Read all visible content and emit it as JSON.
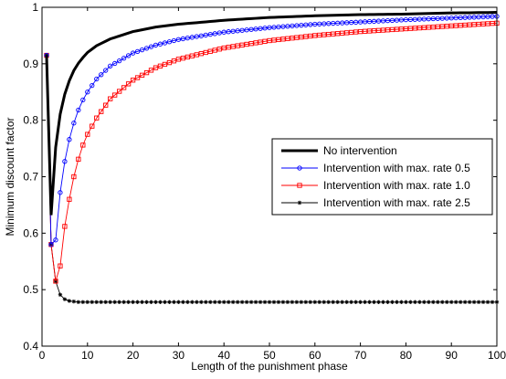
{
  "chart_data": {
    "type": "line",
    "title": "",
    "xlabel": "Length of the punishment phase",
    "ylabel": "Minimum discount factor",
    "xlim": [
      0,
      100
    ],
    "ylim": [
      0.4,
      1.0
    ],
    "xticks": [
      0,
      10,
      20,
      30,
      40,
      50,
      60,
      70,
      80,
      90,
      100
    ],
    "yticks": [
      0.4,
      0.5,
      0.6,
      0.7,
      0.8,
      0.9,
      1.0
    ],
    "xtick_labels": [
      "0",
      "10",
      "20",
      "30",
      "40",
      "50",
      "60",
      "70",
      "80",
      "90",
      "100"
    ],
    "ytick_labels": [
      "0.4",
      "0.5",
      "0.6",
      "0.7",
      "0.8",
      "0.9",
      "1"
    ],
    "grid": false,
    "legend_position": "right",
    "series": [
      {
        "name": "No intervention",
        "color": "#000000",
        "marker": "none",
        "line_width": "thick",
        "x": [
          1,
          2,
          3,
          4,
          5,
          6,
          7,
          8,
          9,
          10,
          12,
          15,
          20,
          25,
          30,
          40,
          50,
          60,
          70,
          80,
          90,
          100
        ],
        "y": [
          0.915,
          0.632,
          0.752,
          0.811,
          0.846,
          0.87,
          0.888,
          0.901,
          0.911,
          0.92,
          0.932,
          0.944,
          0.957,
          0.965,
          0.97,
          0.977,
          0.982,
          0.985,
          0.987,
          0.988,
          0.99,
          0.991
        ]
      },
      {
        "name": "Intervention with max. rate 0.5",
        "color": "#0000ff",
        "marker": "circle",
        "x": [
          1,
          2,
          3,
          4,
          5,
          6,
          7,
          8,
          9,
          10,
          12,
          15,
          20,
          25,
          30,
          40,
          50,
          60,
          70,
          80,
          90,
          100
        ],
        "y": [
          0.915,
          0.58,
          0.588,
          0.672,
          0.727,
          0.766,
          0.795,
          0.818,
          0.836,
          0.85,
          0.873,
          0.896,
          0.919,
          0.933,
          0.943,
          0.956,
          0.964,
          0.97,
          0.974,
          0.978,
          0.981,
          0.984
        ]
      },
      {
        "name": "Intervention with max. rate 1.0",
        "color": "#ff0000",
        "marker": "square",
        "x": [
          1,
          2,
          3,
          4,
          5,
          6,
          7,
          8,
          9,
          10,
          12,
          15,
          20,
          25,
          30,
          40,
          50,
          60,
          70,
          80,
          90,
          100
        ],
        "y": [
          0.915,
          0.58,
          0.515,
          0.542,
          0.612,
          0.66,
          0.7,
          0.731,
          0.756,
          0.775,
          0.804,
          0.838,
          0.871,
          0.893,
          0.908,
          0.928,
          0.941,
          0.95,
          0.957,
          0.962,
          0.967,
          0.972
        ]
      },
      {
        "name": "Intervention with max. rate 2.5",
        "color": "#000000",
        "marker": "asterisk",
        "x": [
          1,
          2,
          3,
          4,
          5,
          6,
          7,
          8,
          9,
          10,
          15,
          20,
          30,
          40,
          50,
          60,
          70,
          80,
          90,
          100
        ],
        "y": [
          0.915,
          0.58,
          0.515,
          0.491,
          0.483,
          0.48,
          0.479,
          0.478,
          0.478,
          0.478,
          0.478,
          0.478,
          0.478,
          0.478,
          0.478,
          0.478,
          0.478,
          0.478,
          0.478,
          0.478
        ]
      }
    ]
  }
}
